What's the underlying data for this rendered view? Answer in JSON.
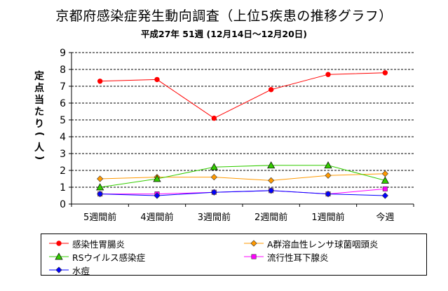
{
  "chart_data": {
    "type": "line",
    "title": "京都府感染症発生動向調査（上位5疾患の推移グラフ）",
    "subtitle": "平成27年 51週 (12月14日～12月20日)",
    "ylabel": "定点当たり(人)",
    "categories": [
      "5週間前",
      "4週間前",
      "3週間前",
      "2週間前",
      "1週間前",
      "今週"
    ],
    "ylim": [
      0,
      9
    ],
    "yticks": [
      0,
      1,
      2,
      3,
      4,
      5,
      6,
      7,
      8,
      9
    ],
    "grid": "horizontal-dashed",
    "legend_position": "bottom",
    "series": [
      {
        "name": "感染性胃腸炎",
        "values": [
          7.3,
          7.4,
          5.1,
          6.8,
          7.7,
          7.8
        ],
        "color": "#ff0000",
        "marker": "circle"
      },
      {
        "name": "A群溶血性レンサ球菌咽頭炎",
        "values": [
          1.5,
          1.6,
          1.6,
          1.4,
          1.7,
          1.8
        ],
        "color": "#ff9900",
        "marker": "diamond"
      },
      {
        "name": "RSウイルス感染症",
        "values": [
          1.0,
          1.5,
          2.2,
          2.3,
          2.3,
          1.4
        ],
        "color": "#33cc00",
        "marker": "triangle"
      },
      {
        "name": "流行性耳下腺炎",
        "values": [
          0.6,
          0.6,
          0.7,
          0.8,
          0.6,
          0.9
        ],
        "color": "#ff00ff",
        "marker": "square"
      },
      {
        "name": "水痘",
        "values": [
          0.6,
          0.5,
          0.7,
          0.8,
          0.6,
          0.5
        ],
        "color": "#0000ff",
        "marker": "diamond"
      }
    ]
  }
}
